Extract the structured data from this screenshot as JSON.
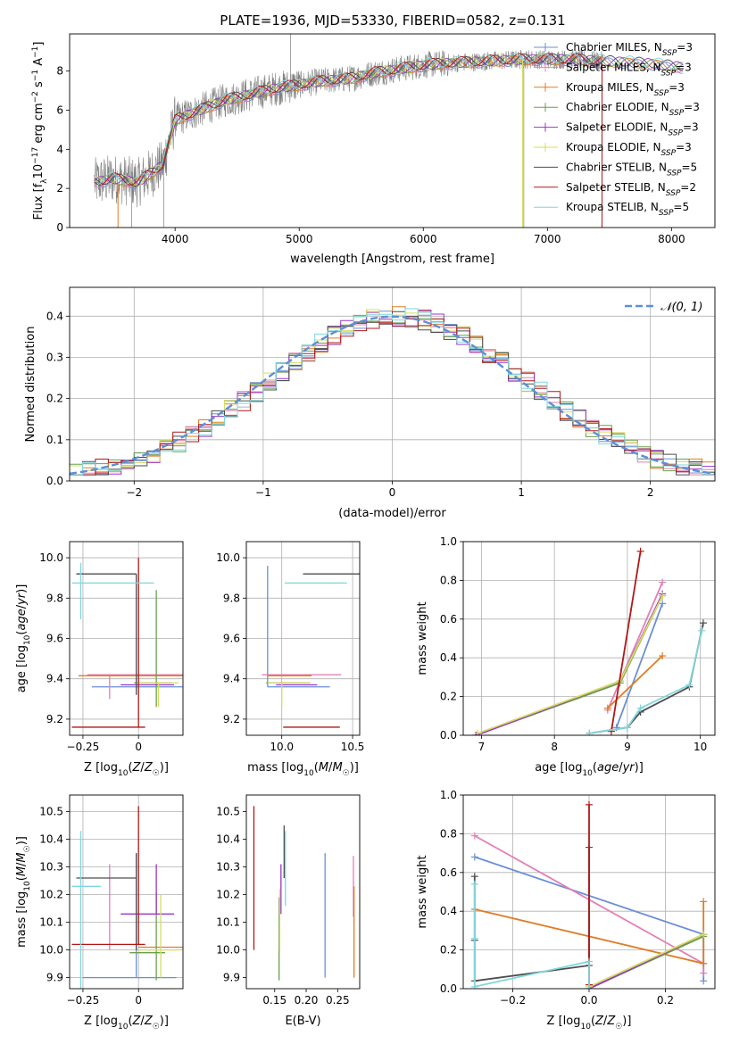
{
  "figure_title": "PLATE=1936, MJD=53330, FIBERID=0582, z=0.131",
  "colors": {
    "Chabrier MILES": "#6b8fd6",
    "Salpeter MILES": "#e47fb6",
    "Kroupa MILES": "#e07b24",
    "Chabrier ELODIE": "#6a9f4c",
    "Salpeter ELODIE": "#9b35c7",
    "Kroupa ELODIE": "#d6dc62",
    "Chabrier STELIB": "#4d4d4d",
    "Salpeter STELIB": "#b01818",
    "Kroupa STELIB": "#7fd6dc",
    "data": "#808080",
    "normal": "#5b8fd9"
  },
  "chart_data": [
    {
      "id": "spectrum",
      "type": "line",
      "title": "PLATE=1936, MJD=53330, FIBERID=0582, z=0.131",
      "xlabel": "wavelength [Angstrom, rest frame]",
      "ylabel": "Flux [f_λ 10⁻¹⁷ erg cm⁻² s⁻¹ A⁻¹]",
      "xlim": [
        3150,
        8350
      ],
      "ylim": [
        0,
        9.9
      ],
      "xticks": [
        4000,
        5000,
        6000,
        7000,
        8000
      ],
      "yticks": [
        0,
        2,
        4,
        6,
        8
      ],
      "legend_position": "top-right",
      "legend": [
        "Chabrier MILES, N_SSP=3",
        "Salpeter MILES, N_SSP=3",
        "Kroupa MILES, N_SSP=3",
        "Chabrier ELODIE, N_SSP=3",
        "Salpeter ELODIE, N_SSP=3",
        "Kroupa ELODIE, N_SSP=3",
        "Chabrier STELIB, N_SSP=5",
        "Salpeter STELIB, N_SSP=2",
        "Kroupa STELIB, N_SSP=5"
      ],
      "continuum": {
        "x": [
          3350,
          3500,
          3700,
          3900,
          4000,
          4200,
          4400,
          4600,
          4800,
          5000,
          5200,
          5400,
          5600,
          5800,
          6000,
          6200,
          6500,
          6800,
          7000,
          7200,
          7500,
          7800,
          8100
        ],
        "y": [
          2.3,
          2.5,
          2.3,
          3.2,
          5.5,
          6.0,
          6.5,
          6.8,
          7.1,
          7.3,
          7.5,
          7.6,
          7.9,
          8.1,
          8.3,
          8.4,
          8.5,
          8.6,
          8.6,
          8.6,
          8.5,
          8.4,
          8.2
        ]
      },
      "data_range": [
        3350,
        7450
      ]
    },
    {
      "id": "residuals",
      "type": "histogram",
      "xlabel": "(data-model)/error",
      "ylabel": "Normed distribution",
      "xlim": [
        -2.5,
        2.5
      ],
      "ylim": [
        0,
        0.47
      ],
      "xticks": [
        -2,
        -1,
        0,
        1,
        2
      ],
      "yticks": [
        0.0,
        0.1,
        0.2,
        0.3,
        0.4
      ],
      "legend_position": "top-right",
      "legend": [
        "𝒩(0, 1)"
      ],
      "bins": 50,
      "grid": true
    },
    {
      "id": "age-vs-Z",
      "type": "errorbar",
      "xlabel": "Z [log₁₀(Z/Z☉)]",
      "ylabel": "age  [log₁₀(age/yr)]",
      "xlim": [
        -0.31,
        0.2
      ],
      "ylim": [
        9.12,
        10.08
      ],
      "xticks": [
        -0.25,
        0.0
      ],
      "yticks": [
        9.2,
        9.4,
        9.6,
        9.8,
        10.0
      ],
      "grid": true,
      "points": [
        {
          "model": "Chabrier MILES",
          "x": -0.01,
          "y": 9.36,
          "xerr": [
            0.2,
            0.22
          ],
          "yerr": [
            0.0,
            0.0
          ]
        },
        {
          "model": "Salpeter MILES",
          "x": -0.13,
          "y": 9.42,
          "xerr": [
            0.1,
            0.33
          ],
          "yerr": [
            0.12,
            0.0
          ]
        },
        {
          "model": "Kroupa MILES",
          "x": -0.07,
          "y": 9.415,
          "xerr": [
            0.2,
            0.27
          ],
          "yerr": [
            0.0,
            0.0
          ]
        },
        {
          "model": "Chabrier ELODIE",
          "x": 0.08,
          "y": 9.38,
          "xerr": [
            0.1,
            0.07
          ],
          "yerr": [
            0.12,
            0.46
          ]
        },
        {
          "model": "Salpeter ELODIE",
          "x": 0.08,
          "y": 9.37,
          "xerr": [
            0.16,
            0.08
          ],
          "yerr": [
            0.0,
            0.0
          ]
        },
        {
          "model": "Kroupa ELODIE",
          "x": 0.09,
          "y": 9.38,
          "xerr": [
            0.1,
            0.09
          ],
          "yerr": [
            0.12,
            0.0
          ]
        },
        {
          "model": "Chabrier STELIB",
          "x": -0.01,
          "y": 9.92,
          "xerr": [
            0.27,
            0.0
          ],
          "yerr": [
            0.6,
            0.0
          ]
        },
        {
          "model": "Salpeter STELIB",
          "x": 0.0,
          "y": 9.16,
          "xerr": [
            0.3,
            0.03
          ],
          "yerr": [
            0.0,
            0.84
          ]
        },
        {
          "model": "Kroupa STELIB",
          "x": -0.26,
          "y": 9.875,
          "xerr": [
            0.04,
            0.33
          ],
          "yerr": [
            0.18,
            0.1
          ]
        }
      ]
    },
    {
      "id": "age-vs-mass",
      "type": "errorbar",
      "xlabel": "mass [log₁₀(M/M☉)]",
      "ylabel": "",
      "xlim": [
        9.75,
        10.55
      ],
      "ylim": [
        9.12,
        10.08
      ],
      "xticks": [
        10.0,
        10.5
      ],
      "yticks": [
        9.2,
        9.4,
        9.6,
        9.8,
        10.0
      ],
      "grid": true,
      "points": [
        {
          "model": "Chabrier MILES",
          "x": 9.9,
          "y": 9.36,
          "xerr": [
            0.0,
            0.44
          ],
          "yerr": [
            0.0,
            0.6
          ]
        },
        {
          "model": "Salpeter MILES",
          "x": 10.12,
          "y": 9.42,
          "xerr": [
            0.26,
            0.3
          ],
          "yerr": [
            0.0,
            0.0
          ]
        },
        {
          "model": "Kroupa MILES",
          "x": 10.0,
          "y": 9.415,
          "xerr": [
            0.1,
            0.21
          ],
          "yerr": [
            0.0,
            0.0
          ]
        },
        {
          "model": "Chabrier ELODIE",
          "x": 9.99,
          "y": 9.38,
          "xerr": [
            0.1,
            0.21
          ],
          "yerr": [
            0.0,
            0.0
          ]
        },
        {
          "model": "Salpeter ELODIE",
          "x": 10.12,
          "y": 9.37,
          "xerr": [
            0.16,
            0.13
          ],
          "yerr": [
            0.0,
            0.0
          ]
        },
        {
          "model": "Kroupa ELODIE",
          "x": 10.0,
          "y": 9.38,
          "xerr": [
            0.1,
            0.2
          ],
          "yerr": [
            0.12,
            0.0
          ]
        },
        {
          "model": "Chabrier STELIB",
          "x": 10.27,
          "y": 9.92,
          "xerr": [
            0.12,
            0.43
          ],
          "yerr": [
            0.0,
            0.0
          ]
        },
        {
          "model": "Salpeter STELIB",
          "x": 10.03,
          "y": 9.16,
          "xerr": [
            0.02,
            0.38
          ],
          "yerr": [
            0.0,
            0.0
          ]
        },
        {
          "model": "Kroupa STELIB",
          "x": 10.24,
          "y": 9.875,
          "xerr": [
            0.22,
            0.22
          ],
          "yerr": [
            0.0,
            0.0
          ]
        }
      ]
    },
    {
      "id": "weight-vs-age",
      "type": "line",
      "xlabel": "age  [log₁₀(age/yr)]",
      "ylabel": "mass weight",
      "xlim": [
        6.75,
        10.2
      ],
      "ylim": [
        0,
        1.0
      ],
      "xticks": [
        7,
        8,
        9,
        10
      ],
      "yticks": [
        0.0,
        0.2,
        0.4,
        0.6,
        0.8,
        1.0
      ],
      "grid": true,
      "series": [
        {
          "model": "Chabrier MILES",
          "x": [
            8.85,
            9.48
          ],
          "y": [
            0.04,
            0.68
          ]
        },
        {
          "model": "Salpeter MILES",
          "x": [
            8.73,
            9.48
          ],
          "y": [
            0.13,
            0.79
          ]
        },
        {
          "model": "Kroupa MILES",
          "x": [
            8.73,
            9.48
          ],
          "y": [
            0.14,
            0.41
          ]
        },
        {
          "model": "Chabrier ELODIE",
          "x": [
            6.92,
            8.9,
            9.48
          ],
          "y": [
            0.0,
            0.27,
            0.72
          ]
        },
        {
          "model": "Salpeter ELODIE",
          "x": [
            6.93,
            8.9,
            9.48
          ],
          "y": [
            0.0,
            0.28,
            0.73
          ]
        },
        {
          "model": "Kroupa ELODIE",
          "x": [
            6.95,
            8.9,
            9.48
          ],
          "y": [
            0.01,
            0.28,
            0.72
          ]
        },
        {
          "model": "Chabrier STELIB",
          "x": [
            8.48,
            9.0,
            9.18,
            9.85,
            10.04
          ],
          "y": [
            0.01,
            0.04,
            0.12,
            0.25,
            0.58
          ]
        },
        {
          "model": "Salpeter STELIB",
          "x": [
            8.78,
            9.18
          ],
          "y": [
            0.02,
            0.95
          ]
        },
        {
          "model": "Kroupa STELIB",
          "x": [
            8.48,
            9.0,
            9.18,
            9.85,
            10.02
          ],
          "y": [
            0.01,
            0.04,
            0.14,
            0.26,
            0.54
          ]
        }
      ]
    },
    {
      "id": "mass-vs-Z",
      "type": "errorbar",
      "xlabel": "Z [log₁₀(Z/Z☉)]",
      "ylabel": "mass [log₁₀(M/M☉)]",
      "xlim": [
        -0.31,
        0.2
      ],
      "ylim": [
        9.86,
        10.56
      ],
      "xticks": [
        -0.25,
        0.0
      ],
      "yticks": [
        9.9,
        10.0,
        10.1,
        10.2,
        10.3,
        10.4,
        10.5
      ],
      "grid": true,
      "points": [
        {
          "model": "Chabrier MILES",
          "x": -0.01,
          "y": 9.9,
          "xerr": [
            0.24,
            0.18
          ],
          "yerr": [
            0.0,
            0.45
          ]
        },
        {
          "model": "Salpeter MILES",
          "x": -0.13,
          "y": 10.12,
          "xerr": [
            0.0,
            0.0
          ],
          "yerr": [
            0.12,
            0.19
          ]
        },
        {
          "model": "Kroupa MILES",
          "x": 0.0,
          "y": 10.01,
          "xerr": [
            0.0,
            0.21
          ],
          "yerr": [
            0.0,
            0.0
          ]
        },
        {
          "model": "Chabrier ELODIE",
          "x": 0.08,
          "y": 9.99,
          "xerr": [
            0.12,
            0.04
          ],
          "yerr": [
            0.1,
            0.22
          ]
        },
        {
          "model": "Salpeter ELODIE",
          "x": 0.08,
          "y": 10.13,
          "xerr": [
            0.16,
            0.08
          ],
          "yerr": [
            0.0,
            0.18
          ]
        },
        {
          "model": "Kroupa ELODIE",
          "x": 0.1,
          "y": 10.0,
          "xerr": [
            0.1,
            0.09
          ],
          "yerr": [
            0.1,
            0.2
          ]
        },
        {
          "model": "Chabrier STELIB",
          "x": -0.01,
          "y": 10.26,
          "xerr": [
            0.27,
            0.0
          ],
          "yerr": [
            0.26,
            0.09
          ]
        },
        {
          "model": "Salpeter STELIB",
          "x": 0.0,
          "y": 10.02,
          "xerr": [
            0.3,
            0.03
          ],
          "yerr": [
            0.0,
            0.5
          ]
        },
        {
          "model": "Kroupa STELIB",
          "x": -0.26,
          "y": 10.23,
          "xerr": [
            0.04,
            0.09
          ],
          "yerr": [
            0.38,
            0.2
          ]
        }
      ]
    },
    {
      "id": "mass-vs-EBV",
      "type": "errorbar",
      "xlabel": "E(B-V)",
      "ylabel": "",
      "xlim": [
        0.105,
        0.285
      ],
      "ylim": [
        9.86,
        10.56
      ],
      "xticks": [
        0.15,
        0.2,
        0.25
      ],
      "yticks": [
        9.9,
        10.0,
        10.1,
        10.2,
        10.3,
        10.4,
        10.5
      ],
      "grid": false,
      "points": [
        {
          "model": "Chabrier MILES",
          "x": 0.23,
          "y": 9.9,
          "yerr": [
            0.0,
            0.45
          ]
        },
        {
          "model": "Salpeter MILES",
          "x": 0.275,
          "y": 10.12,
          "yerr": [
            0.0,
            0.22
          ]
        },
        {
          "model": "Kroupa MILES",
          "x": 0.276,
          "y": 10.01,
          "yerr": [
            0.11,
            0.22
          ]
        },
        {
          "model": "Chabrier ELODIE",
          "x": 0.157,
          "y": 9.99,
          "yerr": [
            0.1,
            0.2
          ]
        },
        {
          "model": "Salpeter ELODIE",
          "x": 0.16,
          "y": 10.13,
          "yerr": [
            0.0,
            0.18
          ]
        },
        {
          "model": "Kroupa ELODIE",
          "x": 0.158,
          "y": 10.0,
          "yerr": [
            0.0,
            0.22
          ]
        },
        {
          "model": "Chabrier STELIB",
          "x": 0.165,
          "y": 10.26,
          "yerr": [
            0.0,
            0.19
          ]
        },
        {
          "model": "Salpeter STELIB",
          "x": 0.117,
          "y": 10.02,
          "yerr": [
            0.02,
            0.5
          ]
        },
        {
          "model": "Kroupa STELIB",
          "x": 0.167,
          "y": 10.23,
          "yerr": [
            0.07,
            0.2
          ]
        }
      ]
    },
    {
      "id": "weight-vs-Z",
      "type": "line",
      "xlabel": "Z [log₁₀(Z/Z☉)]",
      "ylabel": "mass weight",
      "xlim": [
        -0.33,
        0.33
      ],
      "ylim": [
        0,
        1.0
      ],
      "xticks": [
        -0.2,
        0.0,
        0.2
      ],
      "yticks": [
        0.0,
        0.2,
        0.4,
        0.6,
        0.8,
        1.0
      ],
      "grid": true,
      "series": [
        {
          "model": "Chabrier MILES",
          "x": [
            -0.3,
            0.3,
            0.3
          ],
          "y": [
            0.68,
            0.28,
            0.04
          ]
        },
        {
          "model": "Salpeter MILES",
          "x": [
            -0.3,
            0.3,
            0.3
          ],
          "y": [
            0.79,
            0.13,
            0.08
          ]
        },
        {
          "model": "Kroupa MILES",
          "x": [
            -0.3,
            0.3,
            0.3
          ],
          "y": [
            0.41,
            0.13,
            0.45
          ]
        },
        {
          "model": "Chabrier ELODIE",
          "x": [
            0.0,
            0.3
          ],
          "y": [
            0.0,
            0.27
          ]
        },
        {
          "model": "Salpeter ELODIE",
          "x": [
            0.0,
            0.3
          ],
          "y": [
            0.0,
            0.28
          ]
        },
        {
          "model": "Kroupa ELODIE",
          "x": [
            0.0,
            0.3
          ],
          "y": [
            0.01,
            0.28
          ]
        },
        {
          "model": "Chabrier STELIB",
          "x": [
            -0.3,
            -0.3,
            -0.3,
            0.0,
            0.0
          ],
          "y": [
            0.58,
            0.25,
            0.04,
            0.12,
            0.73
          ]
        },
        {
          "model": "Salpeter STELIB",
          "x": [
            0.0,
            0.0
          ],
          "y": [
            0.02,
            0.95
          ]
        },
        {
          "model": "Kroupa STELIB",
          "x": [
            -0.3,
            -0.3,
            -0.3,
            0.0,
            0.0
          ],
          "y": [
            0.54,
            0.26,
            0.01,
            0.14,
            0.0
          ]
        }
      ]
    }
  ]
}
